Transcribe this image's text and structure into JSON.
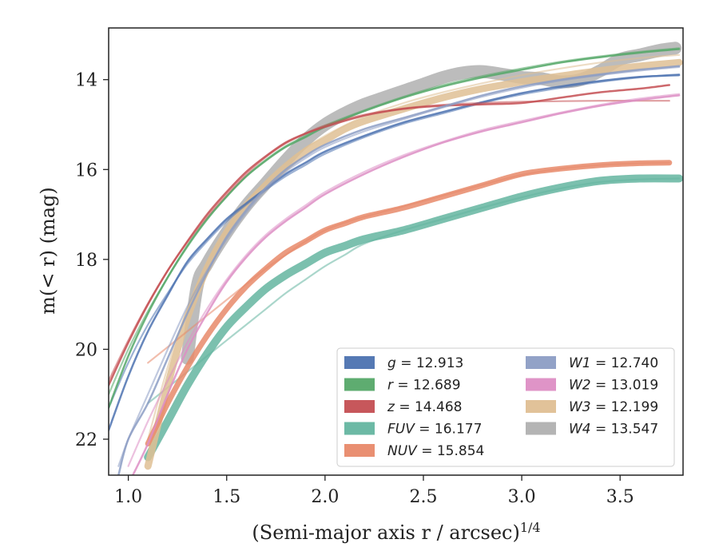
{
  "chart_data": {
    "type": "line",
    "xlabel": "(Semi-major axis r / arcsec)",
    "xlabel_sup": "1/4",
    "ylabel": "m(< r) (mag)",
    "xlim": [
      0.9,
      3.82
    ],
    "ylim": [
      22.8,
      12.85
    ],
    "y_inverted": true,
    "x_ticks": [
      1.0,
      1.5,
      2.0,
      2.5,
      3.0,
      3.5
    ],
    "x_tick_labels": [
      "1.0",
      "1.5",
      "2.0",
      "2.5",
      "3.0",
      "3.5"
    ],
    "y_ticks": [
      14,
      16,
      18,
      20,
      22
    ],
    "y_tick_labels": [
      "14",
      "16",
      "18",
      "20",
      "22"
    ],
    "grid": false,
    "legend_position": "lower-right",
    "series": [
      {
        "name": "g = 12.913",
        "label_var": "g",
        "label_val": "12.913",
        "color": "#4c72b0",
        "band_width": [
          2.5,
          1.2
        ],
        "x": [
          0.9,
          1.0,
          1.1,
          1.2,
          1.3,
          1.4,
          1.5,
          1.6,
          1.7,
          1.8,
          1.9,
          2.0,
          2.2,
          2.4,
          2.6,
          2.8,
          3.0,
          3.2,
          3.4,
          3.6,
          3.8
        ],
        "values": [
          21.8,
          20.6,
          19.6,
          18.8,
          18.05,
          17.55,
          17.1,
          16.75,
          16.42,
          16.1,
          15.85,
          15.6,
          15.25,
          14.95,
          14.72,
          14.5,
          14.3,
          14.15,
          14.03,
          13.94,
          13.9
        ],
        "model": [
          21.3,
          20.3,
          19.45,
          18.75,
          18.1,
          17.6,
          17.15,
          16.78,
          16.45,
          16.15,
          15.9,
          15.65,
          15.28,
          14.98,
          14.75,
          14.52,
          14.33,
          14.18,
          14.05,
          13.95,
          13.88
        ]
      },
      {
        "name": "r = 12.689",
        "label_var": "r",
        "label_val": "12.689",
        "color": "#55a868",
        "band_width": [
          2.5,
          1.2
        ],
        "x": [
          0.9,
          1.0,
          1.1,
          1.2,
          1.3,
          1.4,
          1.5,
          1.6,
          1.7,
          1.8,
          1.9,
          2.0,
          2.2,
          2.4,
          2.6,
          2.8,
          3.0,
          3.2,
          3.4,
          3.6,
          3.8
        ],
        "values": [
          21.3,
          20.15,
          19.2,
          18.4,
          17.7,
          17.1,
          16.6,
          16.15,
          15.8,
          15.5,
          15.28,
          15.05,
          14.7,
          14.4,
          14.15,
          13.95,
          13.78,
          13.62,
          13.5,
          13.4,
          13.32
        ],
        "model": [
          21.0,
          20.0,
          19.15,
          18.4,
          17.72,
          17.12,
          16.6,
          16.15,
          15.78,
          15.48,
          15.25,
          15.02,
          14.68,
          14.38,
          14.12,
          13.92,
          13.75,
          13.6,
          13.48,
          13.38,
          13.3
        ]
      },
      {
        "name": "z = 14.468",
        "label_var": "z",
        "label_val": "14.468",
        "color": "#c44e52",
        "band_width": [
          2.5,
          1.2
        ],
        "x": [
          0.9,
          1.0,
          1.1,
          1.2,
          1.3,
          1.4,
          1.5,
          1.6,
          1.7,
          1.8,
          1.9,
          2.0,
          2.2,
          2.4,
          2.6,
          2.8,
          3.0,
          3.2,
          3.4,
          3.6,
          3.75
        ],
        "values": [
          20.8,
          19.85,
          19.0,
          18.25,
          17.6,
          17.0,
          16.5,
          16.05,
          15.7,
          15.4,
          15.2,
          15.05,
          14.8,
          14.65,
          14.58,
          14.55,
          14.52,
          14.4,
          14.28,
          14.2,
          14.12
        ],
        "model": [
          20.7,
          19.8,
          18.98,
          18.25,
          17.62,
          17.05,
          16.55,
          16.1,
          15.72,
          15.42,
          15.2,
          15.02,
          14.78,
          14.64,
          14.56,
          14.52,
          14.49,
          14.48,
          14.47,
          14.47,
          14.47
        ]
      },
      {
        "name": "FUV = 16.177",
        "label_var": "FUV",
        "label_val": "16.177",
        "color": "#64b5a0",
        "band_width": [
          10,
          5
        ],
        "x": [
          1.1,
          1.2,
          1.3,
          1.4,
          1.5,
          1.6,
          1.7,
          1.8,
          1.9,
          2.0,
          2.1,
          2.2,
          2.4,
          2.6,
          2.8,
          3.0,
          3.2,
          3.4,
          3.6,
          3.8
        ],
        "values": [
          22.4,
          21.6,
          20.8,
          20.1,
          19.5,
          19.05,
          18.65,
          18.35,
          18.1,
          17.85,
          17.7,
          17.55,
          17.35,
          17.1,
          16.85,
          16.6,
          16.4,
          16.25,
          16.2,
          16.2
        ],
        "model": [
          21.2,
          20.85,
          20.5,
          20.15,
          19.8,
          19.45,
          19.1,
          18.75,
          18.45,
          18.15,
          17.9,
          17.65,
          17.35,
          17.1,
          16.85,
          16.62,
          16.42,
          16.28,
          16.22,
          16.2
        ]
      },
      {
        "name": "NUV = 15.854",
        "label_var": "NUV",
        "label_val": "15.854",
        "color": "#e8896a",
        "band_width": [
          7,
          3
        ],
        "x": [
          1.1,
          1.2,
          1.3,
          1.4,
          1.5,
          1.6,
          1.7,
          1.8,
          1.9,
          2.0,
          2.1,
          2.2,
          2.4,
          2.6,
          2.8,
          3.0,
          3.2,
          3.4,
          3.6,
          3.75
        ],
        "values": [
          22.1,
          21.2,
          20.4,
          19.7,
          19.1,
          18.6,
          18.2,
          17.85,
          17.6,
          17.35,
          17.2,
          17.05,
          16.85,
          16.6,
          16.35,
          16.1,
          15.98,
          15.9,
          15.86,
          15.85
        ],
        "model": [
          20.3,
          19.95,
          19.6,
          19.25,
          18.9,
          18.55,
          18.2,
          17.9,
          17.6,
          17.35,
          17.18,
          17.05,
          16.82,
          16.58,
          16.34,
          16.12,
          15.98,
          15.9,
          15.86,
          15.85
        ]
      },
      {
        "name": "W1 = 12.740",
        "label_var": "W1",
        "label_val": "12.740",
        "color": "#8c9dc4",
        "band_width": [
          2.5,
          1.2
        ],
        "x": [
          0.95,
          1.0,
          1.1,
          1.2,
          1.3,
          1.4,
          1.5,
          1.6,
          1.7,
          1.8,
          1.9,
          2.0,
          2.2,
          2.4,
          2.6,
          2.8,
          3.0,
          3.2,
          3.4,
          3.6,
          3.8
        ],
        "values": [
          22.8,
          22.0,
          21.2,
          20.2,
          19.2,
          18.3,
          17.5,
          16.9,
          16.4,
          16.0,
          15.7,
          15.45,
          15.1,
          14.85,
          14.6,
          14.35,
          14.15,
          14.0,
          13.88,
          13.78,
          13.7
        ],
        "model": [
          22.6,
          22.0,
          21.0,
          20.0,
          19.05,
          18.25,
          17.55,
          16.95,
          16.45,
          16.05,
          15.75,
          15.5,
          15.15,
          14.88,
          14.62,
          14.38,
          14.18,
          14.02,
          13.9,
          13.8,
          13.72
        ]
      },
      {
        "name": "W2 = 13.019",
        "label_var": "W2",
        "label_val": "13.019",
        "color": "#dd8ec4",
        "band_width": [
          2.5,
          1.2
        ],
        "x": [
          1.0,
          1.1,
          1.2,
          1.3,
          1.4,
          1.5,
          1.6,
          1.7,
          1.8,
          1.9,
          2.0,
          2.2,
          2.4,
          2.6,
          2.8,
          3.0,
          3.2,
          3.4,
          3.6,
          3.8
        ],
        "values": [
          23.0,
          22.1,
          21.0,
          20.0,
          19.2,
          18.5,
          17.95,
          17.5,
          17.15,
          16.85,
          16.55,
          16.1,
          15.72,
          15.4,
          15.15,
          14.95,
          14.75,
          14.58,
          14.45,
          14.35
        ],
        "model": [
          22.6,
          21.6,
          20.7,
          19.85,
          19.1,
          18.45,
          17.9,
          17.45,
          17.1,
          16.8,
          16.5,
          16.05,
          15.68,
          15.38,
          15.12,
          14.92,
          14.73,
          14.56,
          14.42,
          14.32
        ]
      },
      {
        "name": "W3 = 12.199",
        "label_var": "W3",
        "label_val": "12.199",
        "color": "#dfbf94",
        "band_width": [
          9,
          4
        ],
        "x": [
          1.1,
          1.2,
          1.3,
          1.4,
          1.5,
          1.6,
          1.7,
          1.8,
          1.9,
          2.0,
          2.1,
          2.2,
          2.4,
          2.6,
          2.8,
          3.0,
          3.2,
          3.4,
          3.6,
          3.8
        ],
        "values": [
          22.6,
          20.8,
          19.3,
          18.2,
          17.4,
          16.8,
          16.35,
          15.95,
          15.6,
          15.35,
          15.1,
          14.92,
          14.65,
          14.4,
          14.2,
          14.05,
          13.92,
          13.8,
          13.7,
          13.62
        ],
        "model": [
          22.0,
          20.4,
          19.1,
          18.1,
          17.35,
          16.75,
          16.25,
          15.85,
          15.52,
          15.25,
          15.02,
          14.82,
          14.52,
          14.28,
          14.08,
          13.9,
          13.75,
          13.62,
          13.52,
          13.45
        ]
      },
      {
        "name": "W4 = 13.547",
        "label_var": "W4",
        "label_val": "13.547",
        "color": "#b0b0b0",
        "band_width": [
          16,
          8
        ],
        "x": [
          1.3,
          1.35,
          1.4,
          1.5,
          1.6,
          1.7,
          1.8,
          1.9,
          2.0,
          2.1,
          2.2,
          2.3,
          2.4,
          2.5,
          2.6,
          2.7,
          2.8,
          2.9,
          3.0,
          3.1,
          3.2,
          3.3,
          3.4,
          3.5,
          3.6,
          3.7,
          3.78
        ],
        "values": [
          20.2,
          18.6,
          18.1,
          17.4,
          16.8,
          16.3,
          15.8,
          15.35,
          15.0,
          14.75,
          14.55,
          14.4,
          14.25,
          14.1,
          13.95,
          13.85,
          13.82,
          13.88,
          13.95,
          13.98,
          14.05,
          14.0,
          13.8,
          13.55,
          13.45,
          13.35,
          13.3
        ],
        "model": []
      }
    ]
  }
}
